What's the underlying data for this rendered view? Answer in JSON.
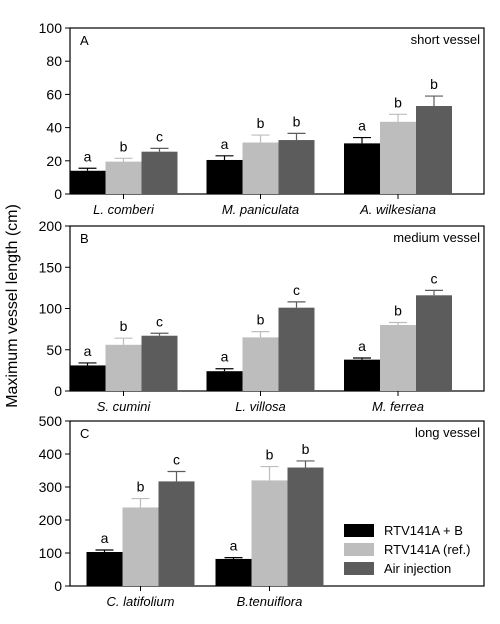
{
  "ylabel": "Maximum vessel length (cm)",
  "legend": [
    "RTV141A + B",
    "RTV141A (ref.)",
    "Air injection"
  ],
  "colors": [
    "#000000",
    "#bdbdbd",
    "#5c5c5c"
  ],
  "chart_data": [
    {
      "type": "bar",
      "panel": "A",
      "subtitle": "short vessel",
      "ylim": [
        0,
        100
      ],
      "yticks": [
        "0",
        "20",
        "40",
        "60",
        "80",
        "100"
      ],
      "categories": [
        "L. comberi",
        "M. paniculata",
        "A. wilkesiana"
      ],
      "series": [
        {
          "name": "RTV141A + B",
          "values": [
            14,
            20.5,
            30.5
          ],
          "errors": [
            1.5,
            2.5,
            3.5
          ],
          "letters": [
            "a",
            "a",
            "a"
          ]
        },
        {
          "name": "RTV141A (ref.)",
          "values": [
            19.5,
            31,
            43.5
          ],
          "errors": [
            2,
            4.5,
            4.5
          ],
          "letters": [
            "b",
            "b",
            "b"
          ]
        },
        {
          "name": "Air injection",
          "values": [
            25.5,
            32.5,
            53
          ],
          "errors": [
            2,
            4,
            6
          ],
          "letters": [
            "c",
            "b",
            "b"
          ]
        }
      ]
    },
    {
      "type": "bar",
      "panel": "B",
      "subtitle": "medium vessel",
      "ylim": [
        0,
        200
      ],
      "yticks": [
        "0",
        "50",
        "100",
        "150",
        "200"
      ],
      "categories": [
        "S. cumini",
        "L. villosa",
        "M. ferrea"
      ],
      "series": [
        {
          "name": "RTV141A + B",
          "values": [
            31,
            24,
            38
          ],
          "errors": [
            3,
            3,
            2
          ],
          "letters": [
            "a",
            "a",
            "a"
          ]
        },
        {
          "name": "RTV141A (ref.)",
          "values": [
            56,
            65,
            80
          ],
          "errors": [
            8,
            7,
            3
          ],
          "letters": [
            "b",
            "b",
            "b"
          ]
        },
        {
          "name": "Air injection",
          "values": [
            67,
            101,
            116
          ],
          "errors": [
            3,
            7,
            6
          ],
          "letters": [
            "c",
            "c",
            "c"
          ]
        }
      ]
    },
    {
      "type": "bar",
      "panel": "C",
      "subtitle": "long vessel",
      "ylim": [
        0,
        500
      ],
      "yticks": [
        "0",
        "100",
        "200",
        "300",
        "400",
        "500"
      ],
      "categories": [
        "C. latifolium",
        "B.tenuiflora"
      ],
      "series": [
        {
          "name": "RTV141A + B",
          "values": [
            103,
            82
          ],
          "errors": [
            6,
            4
          ],
          "letters": [
            "a",
            "a"
          ]
        },
        {
          "name": "RTV141A (ref.)",
          "values": [
            238,
            320
          ],
          "errors": [
            27,
            42
          ],
          "letters": [
            "b",
            "b"
          ]
        },
        {
          "name": "Air injection",
          "values": [
            317,
            359
          ],
          "errors": [
            30,
            20
          ],
          "letters": [
            "c",
            "b"
          ]
        }
      ]
    }
  ]
}
